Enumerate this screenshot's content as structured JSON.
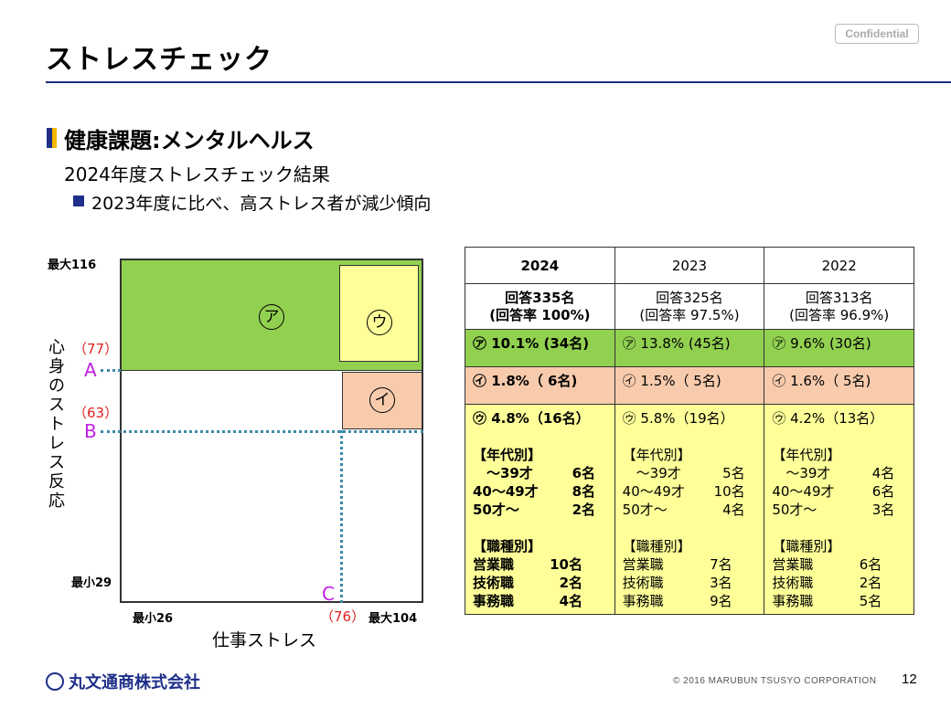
{
  "header": {
    "title": "ストレスチェック",
    "confidential_label": "Confidential"
  },
  "section": {
    "heading": "健康課題:メンタルヘルス",
    "subheading": "2024年度ストレスチェック結果",
    "bullet": "2023年度に比べ、高ストレス者が減少傾向"
  },
  "chart": {
    "y_axis_label": "心身のストレス反応",
    "x_axis_label": "仕事ストレス",
    "y_max_label": "最大116",
    "y_min_label": "最小29",
    "x_min_label": "最小26",
    "x_max_label": "最大104",
    "threshold_a_label": "A",
    "threshold_a_value": "（77）",
    "threshold_b_label": "B",
    "threshold_b_value": "（63）",
    "threshold_c_label": "C",
    "threshold_c_value": "（76）",
    "zone_a": "ア",
    "zone_i": "イ",
    "zone_u": "ウ",
    "colors": {
      "zone_a": "#92d050",
      "zone_i": "#f8cbad",
      "zone_u": "#ffff99",
      "threshold_line": "#3d8aa8",
      "threshold_letter": "#c020e0",
      "threshold_value": "#e02020"
    }
  },
  "table": {
    "columns": [
      {
        "year": "2024",
        "responses": "回答335名",
        "response_rate": "(回答率 100%)",
        "a": "㋐ 10.1% (34名)",
        "i": "㋑ 1.8%（ 6名)",
        "u": "㋒  4.8%（16名）",
        "age_heading": "【年代別】",
        "age": [
          {
            "k": "　～39才",
            "v": "6名"
          },
          {
            "k": "40～49才",
            "v": "8名"
          },
          {
            "k": "50才～",
            "v": "2名"
          }
        ],
        "job_heading": "【職種別】",
        "job": [
          {
            "k": "営業職",
            "v": "10名"
          },
          {
            "k": "技術職",
            "v": "2名"
          },
          {
            "k": "事務職",
            "v": "4名"
          }
        ]
      },
      {
        "year": "2023",
        "responses": "回答325名",
        "response_rate": "(回答率 97.5%)",
        "a": "㋐ 13.8% (45名)",
        "i": "㋑ 1.5%（ 5名)",
        "u": "㋒  5.8%（19名）",
        "age_heading": "【年代別】",
        "age": [
          {
            "k": "　～39才",
            "v": "5名"
          },
          {
            "k": "40～49才",
            "v": "10名"
          },
          {
            "k": "50才～",
            "v": "4名"
          }
        ],
        "job_heading": "【職種別】",
        "job": [
          {
            "k": "営業職",
            "v": "7名"
          },
          {
            "k": "技術職",
            "v": "3名"
          },
          {
            "k": "事務職",
            "v": "9名"
          }
        ]
      },
      {
        "year": "2022",
        "responses": "回答313名",
        "response_rate": "(回答率 96.9%)",
        "a": "㋐ 9.6% (30名)",
        "i": "㋑ 1.6%（ 5名)",
        "u": "㋒  4.2%（13名）",
        "age_heading": "【年代別】",
        "age": [
          {
            "k": "　～39才",
            "v": "4名"
          },
          {
            "k": "40～49才",
            "v": "6名"
          },
          {
            "k": "50才～",
            "v": "3名"
          }
        ],
        "job_heading": "【職種別】",
        "job": [
          {
            "k": "営業職",
            "v": "6名"
          },
          {
            "k": "技術職",
            "v": "2名"
          },
          {
            "k": "事務職",
            "v": "5名"
          }
        ]
      }
    ]
  },
  "footer": {
    "company": "丸文通商株式会社",
    "copyright": "© 2016 MARUBUN TSUSYO CORPORATION",
    "page_number": "12"
  }
}
